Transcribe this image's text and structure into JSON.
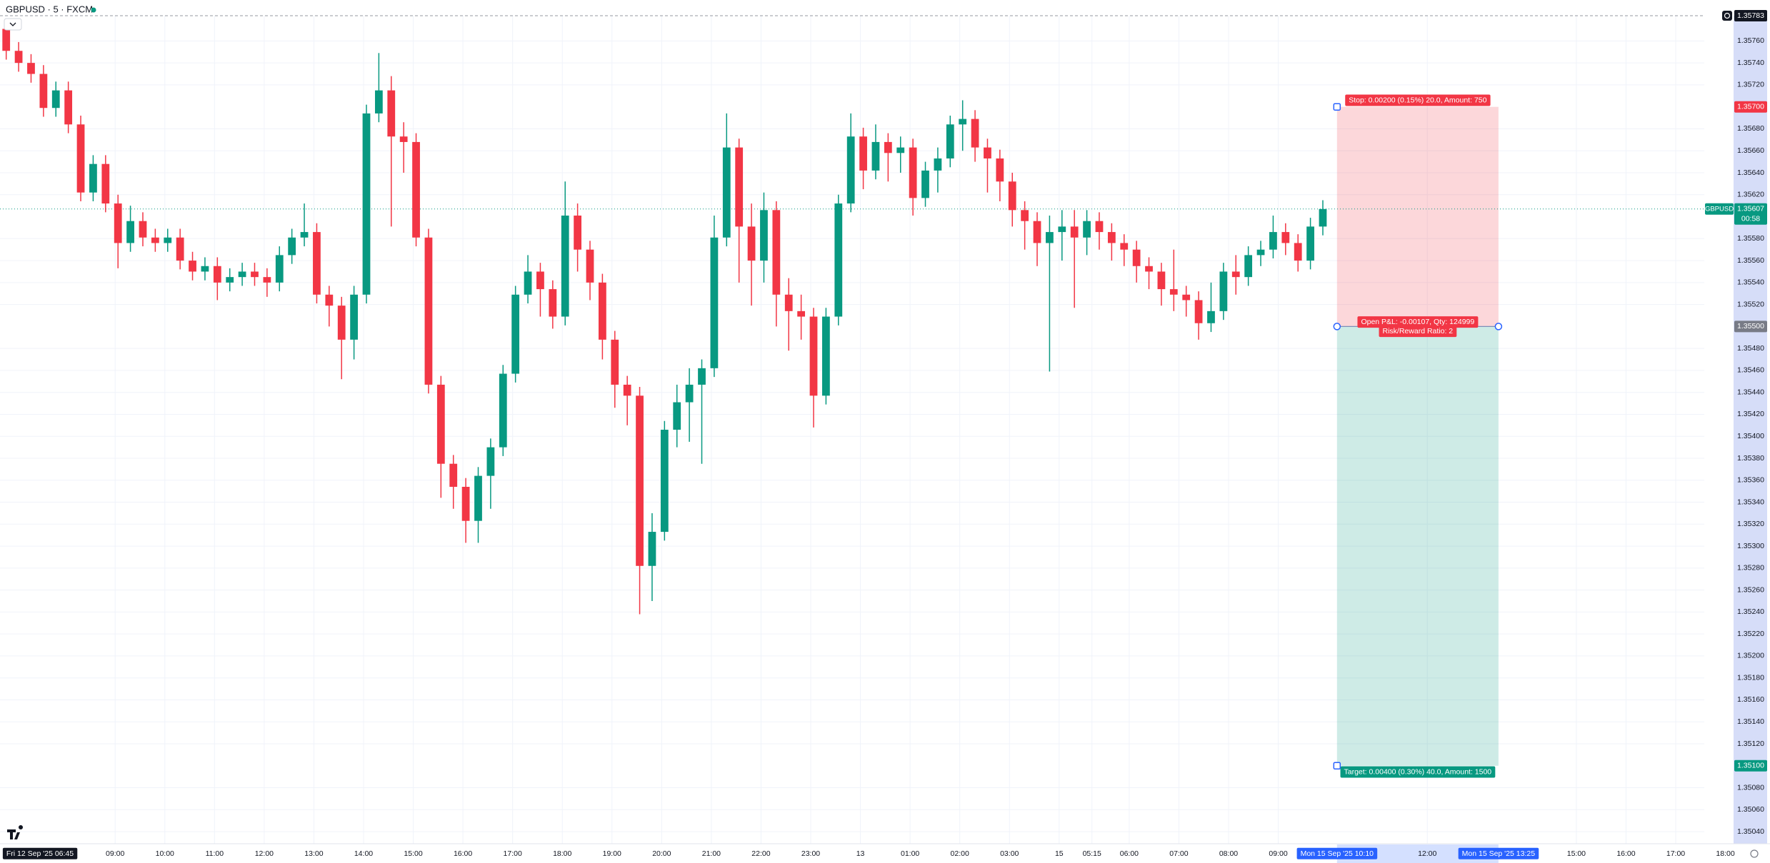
{
  "chart_data": {
    "type": "candlestick",
    "title": "GBPUSD · 5 · FXCM",
    "first_bar_label": "Fri 12 Sep '25  06:45",
    "up_color": "#089981",
    "down_color": "#f23645",
    "grid": true,
    "xlim": [
      0,
      142.5
    ],
    "ylim": [
      1.35029,
      1.35783
    ],
    "x": [
      0.5,
      1.5,
      2.5,
      3.5,
      4.5,
      5.5,
      6.5,
      7.5,
      8.5,
      9.5,
      10.5,
      11.5,
      12.5,
      13.5,
      14.5,
      15.5,
      16.5,
      17.5,
      18.5,
      19.5,
      20.5,
      21.5,
      22.5,
      23.5,
      24.5,
      25.5,
      26.5,
      27.5,
      28.5,
      29.5,
      30.5,
      31.5,
      32.5,
      33.5,
      34.5,
      35.5,
      36.5,
      37.5,
      38.5,
      39.5,
      40.5,
      41.5,
      42.5,
      43.5,
      44.5,
      45.5,
      46.5,
      47.5,
      48.5,
      49.5,
      50.5,
      51.5,
      52.5,
      53.5,
      54.5,
      55.5,
      56.5,
      57.5,
      58.5,
      59.5,
      60.5,
      61.5,
      62.5,
      63.5,
      64.5,
      65.5,
      66.5,
      67.5,
      68.5,
      69.5,
      70.5,
      71.5,
      72.5,
      73.5,
      74.5,
      75.5,
      76.5,
      77.5,
      78.5,
      79.5,
      80.5,
      81.5,
      82.5,
      83.5,
      84.5,
      85.5,
      86.5,
      87.5,
      88.5,
      89.5,
      90.5,
      91.5,
      92.5,
      93.5,
      94.5,
      95.5,
      96.5,
      97.5,
      98.5,
      99.5,
      100.5,
      101.5,
      102.5,
      103.5,
      104.5,
      105.5,
      106.5
    ],
    "open": [
      1.35771,
      1.35751,
      1.3574,
      1.3573,
      1.35699,
      1.35715,
      1.35684,
      1.35622,
      1.35648,
      1.35612,
      1.35576,
      1.35596,
      1.35581,
      1.35576,
      1.35581,
      1.3556,
      1.3555,
      1.35555,
      1.3554,
      1.35545,
      1.3555,
      1.35545,
      1.3554,
      1.35565,
      1.35581,
      1.35586,
      1.35529,
      1.35519,
      1.35488,
      1.35529,
      1.35694,
      1.35715,
      1.35673,
      1.35668,
      1.35581,
      1.35447,
      1.35375,
      1.35354,
      1.35323,
      1.35364,
      1.3539,
      1.35457,
      1.35529,
      1.3555,
      1.35534,
      1.35509,
      1.35601,
      1.3557,
      1.3554,
      1.35488,
      1.35447,
      1.35437,
      1.35282,
      1.35313,
      1.35406,
      1.35431,
      1.35447,
      1.35462,
      1.35581,
      1.35663,
      1.35591,
      1.3556,
      1.35606,
      1.35529,
      1.35514,
      1.35509,
      1.35437,
      1.35509,
      1.35612,
      1.35673,
      1.35642,
      1.35668,
      1.35658,
      1.35663,
      1.35617,
      1.35642,
      1.35653,
      1.35684,
      1.35689,
      1.35663,
      1.35653,
      1.35632,
      1.35606,
      1.35596,
      1.35576,
      1.35586,
      1.35591,
      1.35581,
      1.35596,
      1.35586,
      1.35576,
      1.3557,
      1.35555,
      1.3555,
      1.35534,
      1.35529,
      1.35524,
      1.35503,
      1.35514,
      1.3555,
      1.35545,
      1.35565,
      1.3557,
      1.35586,
      1.35576,
      1.3556,
      1.35591
    ],
    "high": [
      1.35779,
      1.35759,
      1.35748,
      1.35738,
      1.35723,
      1.35723,
      1.35692,
      1.35656,
      1.35656,
      1.3562,
      1.3561,
      1.35604,
      1.35589,
      1.35589,
      1.35589,
      1.35568,
      1.35563,
      1.35563,
      1.35553,
      1.35558,
      1.35558,
      1.35553,
      1.35573,
      1.35589,
      1.35612,
      1.35594,
      1.35537,
      1.35527,
      1.35537,
      1.35702,
      1.35749,
      1.35728,
      1.35686,
      1.35676,
      1.35589,
      1.35455,
      1.35383,
      1.35362,
      1.35372,
      1.35398,
      1.35465,
      1.35537,
      1.35565,
      1.35558,
      1.35542,
      1.35632,
      1.35612,
      1.35578,
      1.35548,
      1.35496,
      1.35455,
      1.35445,
      1.3533,
      1.35414,
      1.35447,
      1.35462,
      1.3547,
      1.35601,
      1.35694,
      1.35671,
      1.35612,
      1.35622,
      1.35614,
      1.35544,
      1.35529,
      1.35517,
      1.35517,
      1.3562,
      1.35694,
      1.35681,
      1.35684,
      1.35676,
      1.35673,
      1.35671,
      1.3565,
      1.35663,
      1.35692,
      1.35706,
      1.35697,
      1.35671,
      1.35661,
      1.3564,
      1.35614,
      1.35604,
      1.35601,
      1.35606,
      1.35606,
      1.35606,
      1.35604,
      1.35594,
      1.35584,
      1.35578,
      1.35563,
      1.35558,
      1.3557,
      1.35537,
      1.35532,
      1.3554,
      1.35558,
      1.35565,
      1.35573,
      1.35578,
      1.35601,
      1.35594,
      1.35584,
      1.35599,
      1.35615
    ],
    "low": [
      1.35743,
      1.35732,
      1.35722,
      1.35691,
      1.35691,
      1.35676,
      1.35614,
      1.35614,
      1.35604,
      1.35553,
      1.35568,
      1.35573,
      1.35568,
      1.35568,
      1.35552,
      1.35542,
      1.35542,
      1.35524,
      1.35532,
      1.35537,
      1.35537,
      1.35527,
      1.35532,
      1.35557,
      1.35573,
      1.35521,
      1.355,
      1.35452,
      1.3547,
      1.35521,
      1.35686,
      1.35591,
      1.3564,
      1.35573,
      1.35439,
      1.35344,
      1.35334,
      1.35303,
      1.35303,
      1.35334,
      1.35382,
      1.35449,
      1.35521,
      1.35509,
      1.35498,
      1.35501,
      1.3555,
      1.35524,
      1.3547,
      1.35426,
      1.3541,
      1.35238,
      1.3525,
      1.35305,
      1.3539,
      1.35395,
      1.35375,
      1.35454,
      1.35573,
      1.3554,
      1.35519,
      1.3554,
      1.355,
      1.35478,
      1.35488,
      1.35408,
      1.35429,
      1.35501,
      1.35604,
      1.35625,
      1.35634,
      1.35632,
      1.3564,
      1.35601,
      1.35609,
      1.35622,
      1.35645,
      1.3566,
      1.3565,
      1.35622,
      1.35614,
      1.35591,
      1.3557,
      1.35555,
      1.35459,
      1.3556,
      1.35517,
      1.35565,
      1.3557,
      1.3556,
      1.35555,
      1.3554,
      1.35534,
      1.35519,
      1.35514,
      1.35509,
      1.35488,
      1.35495,
      1.35506,
      1.35529,
      1.35537,
      1.35555,
      1.35562,
      1.35565,
      1.3555,
      1.35552,
      1.35583
    ],
    "close": [
      1.35751,
      1.3574,
      1.3573,
      1.35699,
      1.35715,
      1.35684,
      1.35622,
      1.35648,
      1.35612,
      1.35576,
      1.35596,
      1.35581,
      1.35576,
      1.35581,
      1.3556,
      1.3555,
      1.35555,
      1.3554,
      1.35545,
      1.3555,
      1.35545,
      1.3554,
      1.35565,
      1.35581,
      1.35586,
      1.35529,
      1.35519,
      1.35488,
      1.35529,
      1.35694,
      1.35715,
      1.35673,
      1.35668,
      1.35581,
      1.35447,
      1.35375,
      1.35354,
      1.35323,
      1.35364,
      1.3539,
      1.35457,
      1.35529,
      1.3555,
      1.35534,
      1.35509,
      1.35601,
      1.3557,
      1.3554,
      1.35488,
      1.35447,
      1.35437,
      1.35282,
      1.35313,
      1.35406,
      1.35431,
      1.35447,
      1.35462,
      1.35581,
      1.35663,
      1.35591,
      1.3556,
      1.35606,
      1.35529,
      1.35514,
      1.35509,
      1.35437,
      1.35509,
      1.35612,
      1.35673,
      1.35642,
      1.35668,
      1.35658,
      1.35663,
      1.35617,
      1.35642,
      1.35653,
      1.35684,
      1.35689,
      1.35663,
      1.35653,
      1.35632,
      1.35606,
      1.35596,
      1.35576,
      1.35586,
      1.35591,
      1.35581,
      1.35596,
      1.35586,
      1.35576,
      1.3557,
      1.35555,
      1.3555,
      1.35534,
      1.35529,
      1.35524,
      1.35503,
      1.35514,
      1.3555,
      1.35545,
      1.35565,
      1.3557,
      1.35586,
      1.35576,
      1.3556,
      1.35591,
      1.35607
    ],
    "xticks": [
      {
        "value": 9.27,
        "label": "09:00"
      },
      {
        "value": 13.27,
        "label": "10:00"
      },
      {
        "value": 17.27,
        "label": "11:00"
      },
      {
        "value": 21.27,
        "label": "12:00"
      },
      {
        "value": 25.27,
        "label": "13:00"
      },
      {
        "value": 29.27,
        "label": "14:00"
      },
      {
        "value": 33.27,
        "label": "15:00"
      },
      {
        "value": 37.27,
        "label": "16:00"
      },
      {
        "value": 41.27,
        "label": "17:00"
      },
      {
        "value": 45.27,
        "label": "18:00"
      },
      {
        "value": 49.27,
        "label": "19:00"
      },
      {
        "value": 53.27,
        "label": "20:00"
      },
      {
        "value": 57.27,
        "label": "21:00"
      },
      {
        "value": 61.27,
        "label": "22:00"
      },
      {
        "value": 65.27,
        "label": "23:00"
      },
      {
        "value": 69.27,
        "label": "13"
      },
      {
        "value": 73.27,
        "label": "01:00"
      },
      {
        "value": 77.27,
        "label": "02:00"
      },
      {
        "value": 81.27,
        "label": "03:00"
      },
      {
        "value": 85.27,
        "label": "15"
      },
      {
        "value": 87.91,
        "label": "05:15"
      },
      {
        "value": 90.91,
        "label": "06:00"
      },
      {
        "value": 94.91,
        "label": "07:00"
      },
      {
        "value": 98.91,
        "label": "08:00"
      },
      {
        "value": 102.91,
        "label": "09:00"
      },
      {
        "value": 114.91,
        "label": "12:00"
      },
      {
        "value": 126.91,
        "label": "15:00"
      },
      {
        "value": 130.91,
        "label": "16:00"
      },
      {
        "value": 134.91,
        "label": "17:00"
      },
      {
        "value": 138.91,
        "label": "18:00"
      }
    ],
    "yticks": [
      {
        "value": 1.3504,
        "label": "1.35040"
      },
      {
        "value": 1.3506,
        "label": "1.35060"
      },
      {
        "value": 1.3508,
        "label": "1.35080"
      },
      {
        "value": 1.3512,
        "label": "1.35120"
      },
      {
        "value": 1.3514,
        "label": "1.35140"
      },
      {
        "value": 1.3516,
        "label": "1.35160"
      },
      {
        "value": 1.3518,
        "label": "1.35180"
      },
      {
        "value": 1.352,
        "label": "1.35200"
      },
      {
        "value": 1.3522,
        "label": "1.35220"
      },
      {
        "value": 1.3524,
        "label": "1.35240"
      },
      {
        "value": 1.3526,
        "label": "1.35260"
      },
      {
        "value": 1.3528,
        "label": "1.35280"
      },
      {
        "value": 1.353,
        "label": "1.35300"
      },
      {
        "value": 1.3532,
        "label": "1.35320"
      },
      {
        "value": 1.3534,
        "label": "1.35340"
      },
      {
        "value": 1.3536,
        "label": "1.35360"
      },
      {
        "value": 1.3538,
        "label": "1.35380"
      },
      {
        "value": 1.354,
        "label": "1.35400"
      },
      {
        "value": 1.3542,
        "label": "1.35420"
      },
      {
        "value": 1.3544,
        "label": "1.35440"
      },
      {
        "value": 1.3546,
        "label": "1.35460"
      },
      {
        "value": 1.3548,
        "label": "1.35480"
      },
      {
        "value": 1.3552,
        "label": "1.35520"
      },
      {
        "value": 1.3554,
        "label": "1.35540"
      },
      {
        "value": 1.3556,
        "label": "1.35560"
      },
      {
        "value": 1.3558,
        "label": "1.35580"
      },
      {
        "value": 1.3562,
        "label": "1.35620"
      },
      {
        "value": 1.3564,
        "label": "1.35640"
      },
      {
        "value": 1.3566,
        "label": "1.35660"
      },
      {
        "value": 1.3568,
        "label": "1.35680"
      },
      {
        "value": 1.3572,
        "label": "1.35720"
      },
      {
        "value": 1.3574,
        "label": "1.35740"
      },
      {
        "value": 1.3576,
        "label": "1.35760"
      }
    ],
    "high_marker": 1.35783,
    "last_price": {
      "value": 1.35607,
      "symbol": "GBPUSD",
      "countdown": "00:58"
    },
    "position": {
      "x_start": 107.64,
      "x_end": 120.64,
      "start_label": "Mon 15 Sep '25  10:10",
      "end_label": "Mon 15 Sep '25  13:25",
      "entry": {
        "value": 1.355,
        "label": "1.35500"
      },
      "stop": {
        "value": 1.357,
        "label": "1.35700"
      },
      "target": {
        "value": 1.351,
        "label": "1.35100"
      },
      "stop_text": "Stop: 0.00200 (0.15%) 20.0, Amount: 750",
      "pnl_text": "Open P&L: -0.00107, Qty: 124999",
      "rr_text": "Risk/Reward Ratio: 2",
      "target_text": "Target: 0.00400 (0.30%) 40.0, Amount: 1500"
    }
  }
}
